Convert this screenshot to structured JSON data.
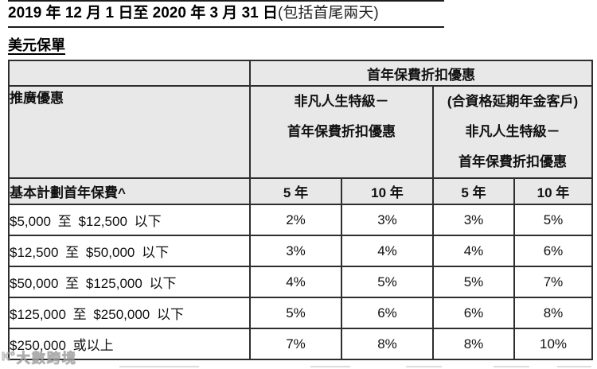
{
  "page": {
    "title_bold": "2019 年 12 月 1 日至 2020 年 3 月 31 日",
    "title_regular": "(包括首尾兩天)",
    "section_heading": "美元保單"
  },
  "table": {
    "top_header": "首年保費折扣優惠",
    "promo_header": "推廣優惠",
    "group1": {
      "line1": "非凡人生特級－",
      "line2": "首年保費折扣優惠"
    },
    "group2": {
      "line1": "(合資格延期年金客戶)",
      "line2": "非凡人生特級－",
      "line3": "首年保費折扣優惠"
    },
    "premium_header": "基本計劃首年保費^",
    "year_headers": [
      "5 年",
      "10 年",
      "5 年",
      "10 年"
    ],
    "rows": [
      {
        "label": "$5,000 至 $12,500 以下",
        "values": [
          "2%",
          "3%",
          "3%",
          "5%"
        ]
      },
      {
        "label": "$12,500 至 $50,000 以下",
        "values": [
          "3%",
          "4%",
          "4%",
          "6%"
        ]
      },
      {
        "label": "$50,000 至 $125,000 以下",
        "values": [
          "4%",
          "5%",
          "5%",
          "7%"
        ]
      },
      {
        "label": "$125,000 至 $250,000 以下",
        "values": [
          "5%",
          "6%",
          "6%",
          "8%"
        ]
      },
      {
        "label": "$250,000 或以上",
        "values": [
          "7%",
          "8%",
          "8%",
          "10%"
        ]
      }
    ]
  },
  "watermark": {
    "logo": "K°",
    "text": "大數跨境"
  },
  "colors": {
    "header_bg": "#e8e8e8",
    "border": "#2e2e2e",
    "text": "#111111"
  }
}
